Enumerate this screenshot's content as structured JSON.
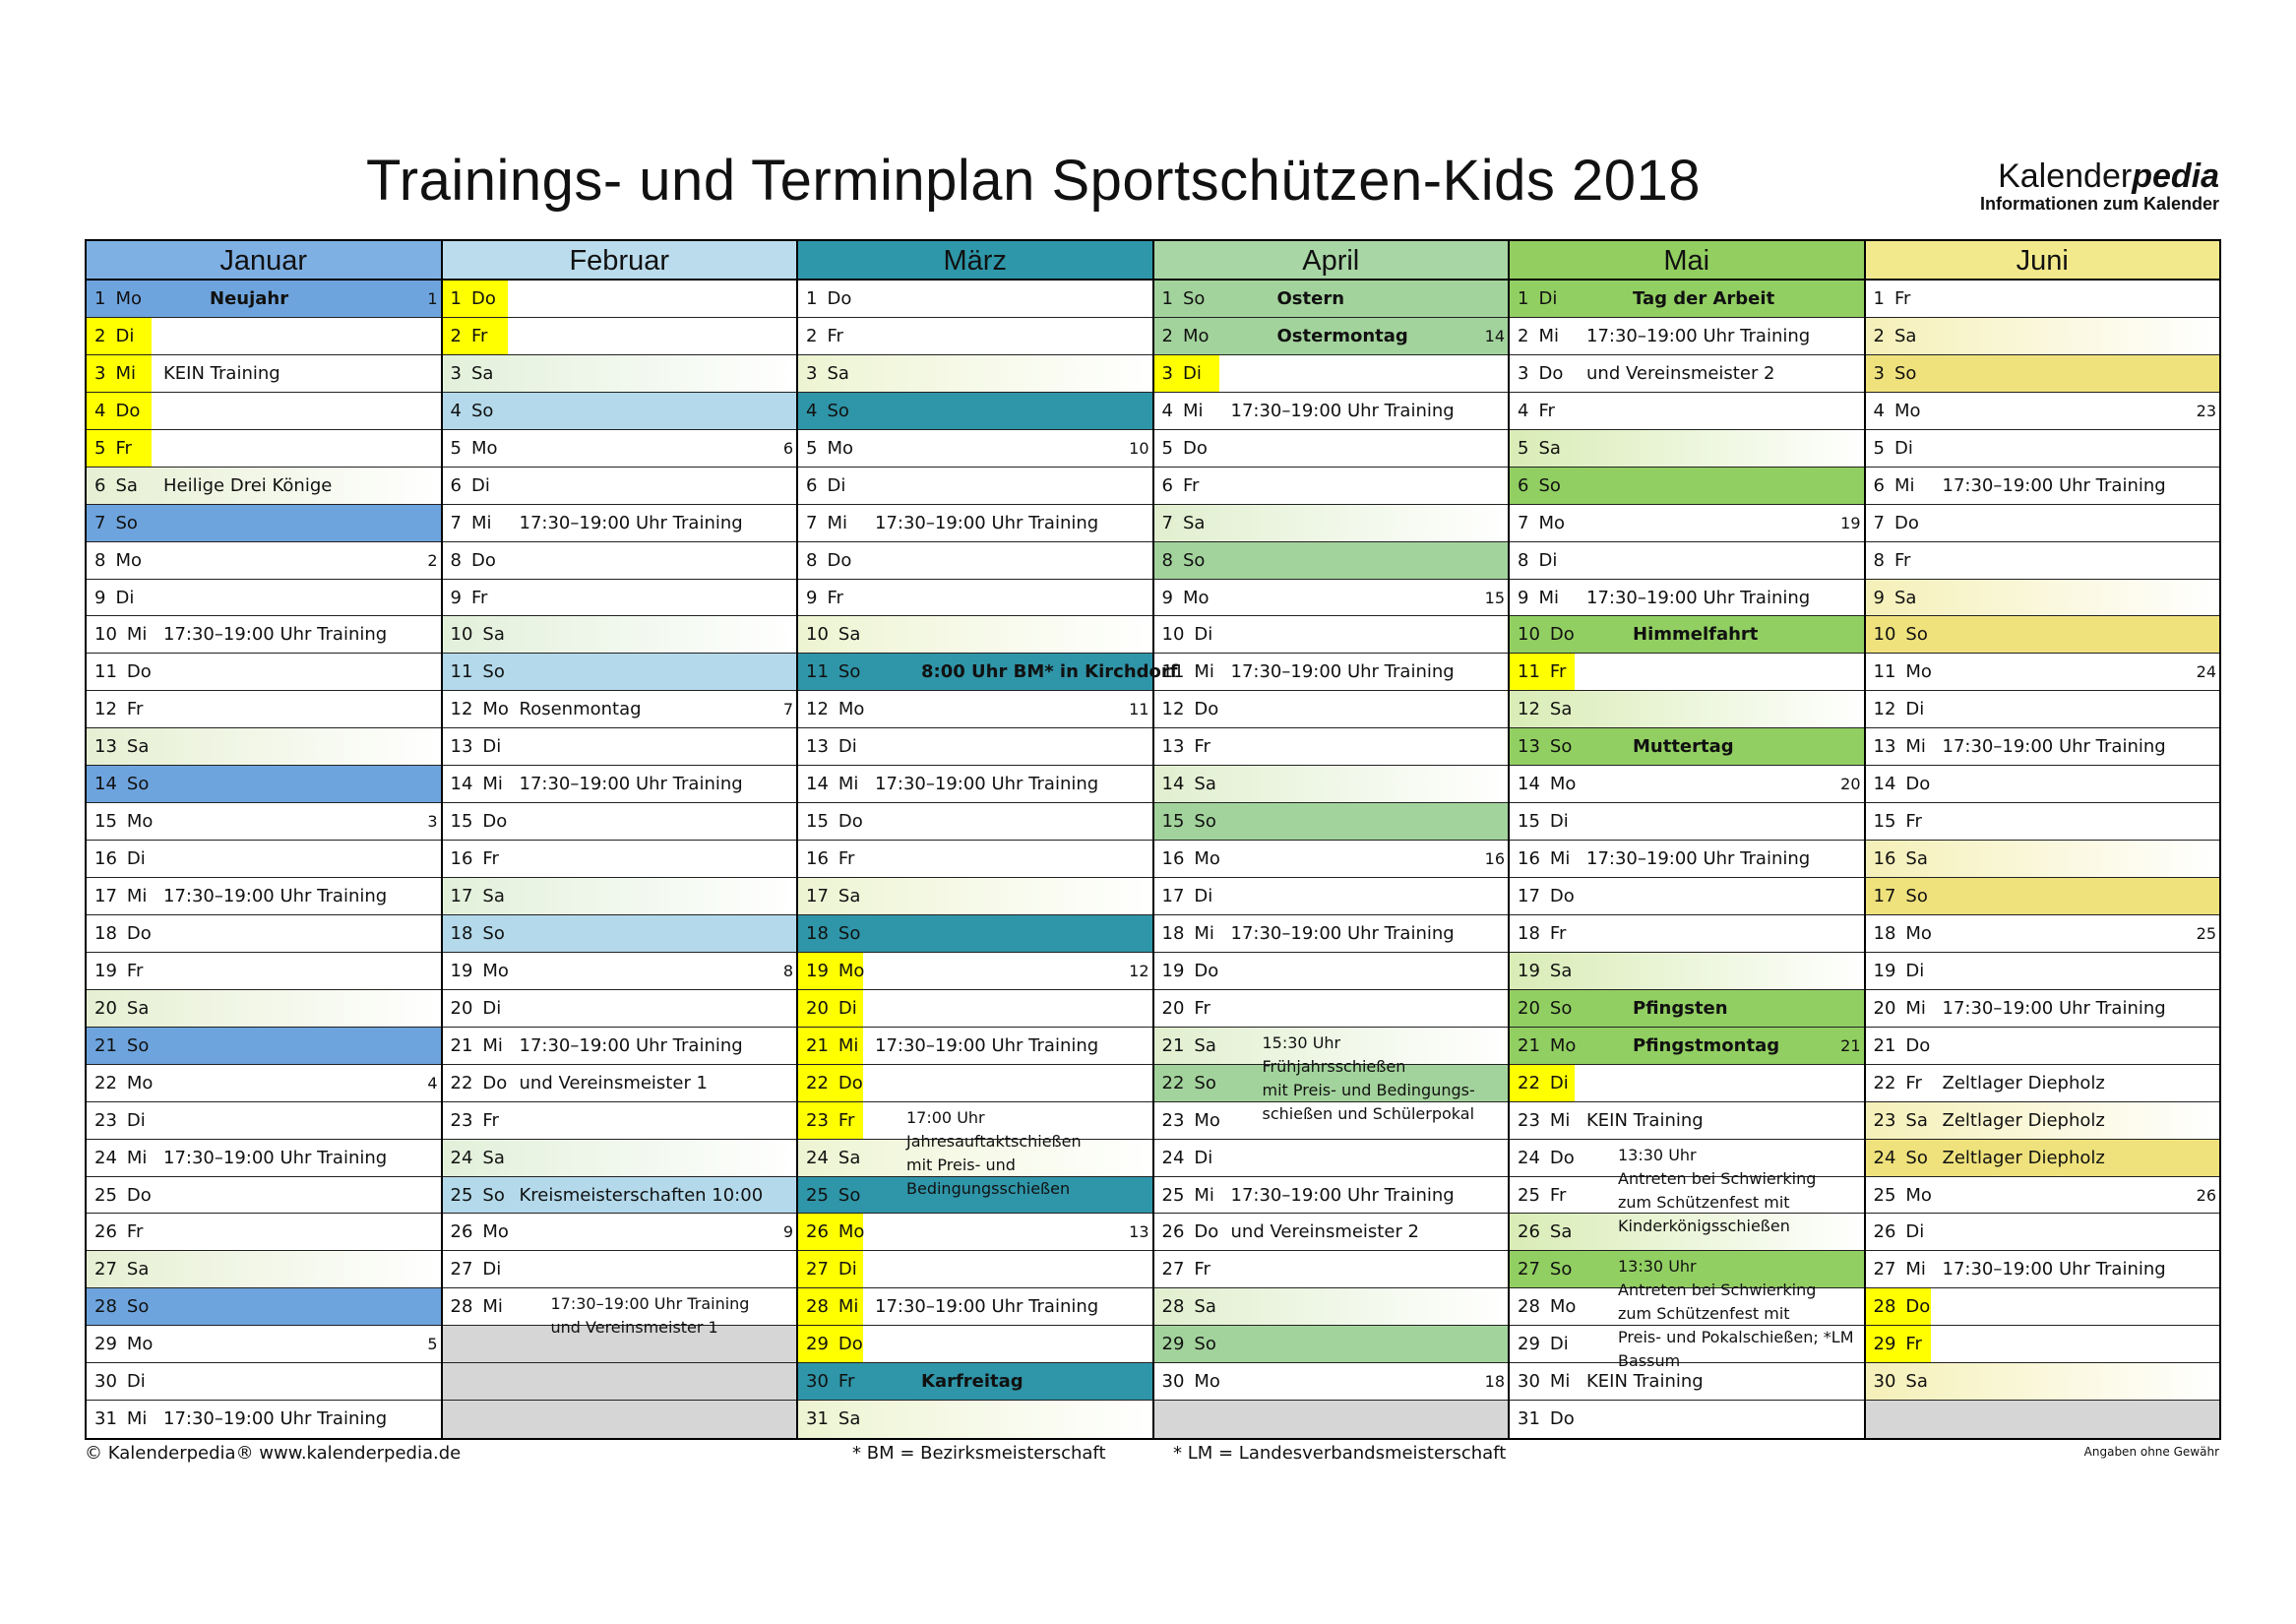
{
  "title": "Trainings- und Terminplan Sportschützen-Kids 2018",
  "brand": {
    "name_a": "Kalender",
    "name_b": "pedia",
    "subtitle": "Informationen zum Kalender"
  },
  "ferien_color": "#ffff00",
  "empty_color": "#d6d6d6",
  "months": [
    {
      "name": "Januar",
      "color": "#7fb0e3",
      "strong": "#6ea4dd",
      "light": "#e6efd2",
      "days": [
        {
          "d": 1,
          "wd": "Mo",
          "note": "Neujahr",
          "kw": 1,
          "h": true
        },
        {
          "d": 2,
          "wd": "Di",
          "f": true
        },
        {
          "d": 3,
          "wd": "Mi",
          "note": "KEIN Training",
          "f": true
        },
        {
          "d": 4,
          "wd": "Do",
          "f": true
        },
        {
          "d": 5,
          "wd": "Fr",
          "f": true
        },
        {
          "d": 6,
          "wd": "Sa",
          "note": "Heilige Drei Könige",
          "h": false
        },
        {
          "d": 7,
          "wd": "So"
        },
        {
          "d": 8,
          "wd": "Mo",
          "kw": 2
        },
        {
          "d": 9,
          "wd": "Di"
        },
        {
          "d": 10,
          "wd": "Mi",
          "note": "17:30–19:00 Uhr Training"
        },
        {
          "d": 11,
          "wd": "Do"
        },
        {
          "d": 12,
          "wd": "Fr"
        },
        {
          "d": 13,
          "wd": "Sa"
        },
        {
          "d": 14,
          "wd": "So"
        },
        {
          "d": 15,
          "wd": "Mo",
          "kw": 3
        },
        {
          "d": 16,
          "wd": "Di"
        },
        {
          "d": 17,
          "wd": "Mi",
          "note": "17:30–19:00 Uhr Training"
        },
        {
          "d": 18,
          "wd": "Do"
        },
        {
          "d": 19,
          "wd": "Fr"
        },
        {
          "d": 20,
          "wd": "Sa"
        },
        {
          "d": 21,
          "wd": "So"
        },
        {
          "d": 22,
          "wd": "Mo",
          "kw": 4
        },
        {
          "d": 23,
          "wd": "Di"
        },
        {
          "d": 24,
          "wd": "Mi",
          "note": "17:30–19:00 Uhr Training"
        },
        {
          "d": 25,
          "wd": "Do"
        },
        {
          "d": 26,
          "wd": "Fr"
        },
        {
          "d": 27,
          "wd": "Sa"
        },
        {
          "d": 28,
          "wd": "So"
        },
        {
          "d": 29,
          "wd": "Mo",
          "kw": 5
        },
        {
          "d": 30,
          "wd": "Di"
        },
        {
          "d": 31,
          "wd": "Mi",
          "note": "17:30–19:00 Uhr Training"
        }
      ]
    },
    {
      "name": "Februar",
      "color": "#bbdcec",
      "strong": "#b3d9ea",
      "light": "#e2f0da",
      "days": [
        {
          "d": 1,
          "wd": "Do",
          "f": true
        },
        {
          "d": 2,
          "wd": "Fr",
          "f": true
        },
        {
          "d": 3,
          "wd": "Sa"
        },
        {
          "d": 4,
          "wd": "So"
        },
        {
          "d": 5,
          "wd": "Mo",
          "kw": 6
        },
        {
          "d": 6,
          "wd": "Di"
        },
        {
          "d": 7,
          "wd": "Mi",
          "note": "17:30–19:00 Uhr Training"
        },
        {
          "d": 8,
          "wd": "Do"
        },
        {
          "d": 9,
          "wd": "Fr"
        },
        {
          "d": 10,
          "wd": "Sa"
        },
        {
          "d": 11,
          "wd": "So"
        },
        {
          "d": 12,
          "wd": "Mo",
          "note": "Rosenmontag",
          "kw": 7
        },
        {
          "d": 13,
          "wd": "Di"
        },
        {
          "d": 14,
          "wd": "Mi",
          "note": "17:30–19:00 Uhr Training"
        },
        {
          "d": 15,
          "wd": "Do"
        },
        {
          "d": 16,
          "wd": "Fr"
        },
        {
          "d": 17,
          "wd": "Sa"
        },
        {
          "d": 18,
          "wd": "So"
        },
        {
          "d": 19,
          "wd": "Mo",
          "kw": 8
        },
        {
          "d": 20,
          "wd": "Di"
        },
        {
          "d": 21,
          "wd": "Mi",
          "note": "17:30–19:00 Uhr Training"
        },
        {
          "d": 22,
          "wd": "Do",
          "note": "und Vereinsmeister 1"
        },
        {
          "d": 23,
          "wd": "Fr"
        },
        {
          "d": 24,
          "wd": "Sa"
        },
        {
          "d": 25,
          "wd": "So",
          "note": "Kreismeisterschaften 10:00"
        },
        {
          "d": 26,
          "wd": "Mo",
          "kw": 9
        },
        {
          "d": 27,
          "wd": "Di"
        },
        {
          "d": 28,
          "wd": "Mi",
          "note": [
            "17:30–19:00 Uhr Training",
            "und Vereinsmeister 1"
          ]
        }
      ]
    },
    {
      "name": "März",
      "color": "#2e97aa",
      "strong": "#2f95a8",
      "light": "#edf4d2",
      "days": [
        {
          "d": 1,
          "wd": "Do"
        },
        {
          "d": 2,
          "wd": "Fr"
        },
        {
          "d": 3,
          "wd": "Sa"
        },
        {
          "d": 4,
          "wd": "So"
        },
        {
          "d": 5,
          "wd": "Mo",
          "kw": 10
        },
        {
          "d": 6,
          "wd": "Di"
        },
        {
          "d": 7,
          "wd": "Mi",
          "note": "17:30–19:00 Uhr Training"
        },
        {
          "d": 8,
          "wd": "Do"
        },
        {
          "d": 9,
          "wd": "Fr"
        },
        {
          "d": 10,
          "wd": "Sa"
        },
        {
          "d": 11,
          "wd": "So",
          "note": "8:00 Uhr BM* in Kirchdorf",
          "h": true
        },
        {
          "d": 12,
          "wd": "Mo",
          "kw": 11
        },
        {
          "d": 13,
          "wd": "Di"
        },
        {
          "d": 14,
          "wd": "Mi",
          "note": "17:30–19:00 Uhr Training"
        },
        {
          "d": 15,
          "wd": "Do"
        },
        {
          "d": 16,
          "wd": "Fr"
        },
        {
          "d": 17,
          "wd": "Sa"
        },
        {
          "d": 18,
          "wd": "So"
        },
        {
          "d": 19,
          "wd": "Mo",
          "kw": 12,
          "f": true
        },
        {
          "d": 20,
          "wd": "Di",
          "f": true
        },
        {
          "d": 21,
          "wd": "Mi",
          "note": "17:30–19:00 Uhr Training",
          "f": true
        },
        {
          "d": 22,
          "wd": "Do",
          "f": true
        },
        {
          "d": 23,
          "wd": "Fr",
          "f": true,
          "note": [
            "17:00 Uhr",
            "Jahresauftaktschießen",
            "mit Preis- und",
            "Bedingungsschießen"
          ]
        },
        {
          "d": 24,
          "wd": "Sa"
        },
        {
          "d": 25,
          "wd": "So"
        },
        {
          "d": 26,
          "wd": "Mo",
          "kw": 13,
          "f": true
        },
        {
          "d": 27,
          "wd": "Di",
          "f": true
        },
        {
          "d": 28,
          "wd": "Mi",
          "note": "17:30–19:00 Uhr Training",
          "f": true
        },
        {
          "d": 29,
          "wd": "Do",
          "f": true
        },
        {
          "d": 30,
          "wd": "Fr",
          "note": "Karfreitag",
          "h": true
        },
        {
          "d": 31,
          "wd": "Sa"
        }
      ]
    },
    {
      "name": "April",
      "color": "#a9d6a5",
      "strong": "#a3d39c",
      "light": "#e1efcf",
      "days": [
        {
          "d": 1,
          "wd": "So",
          "note": "Ostern",
          "h": true
        },
        {
          "d": 2,
          "wd": "Mo",
          "note": "Ostermontag",
          "kw": 14,
          "h": true
        },
        {
          "d": 3,
          "wd": "Di",
          "f": true
        },
        {
          "d": 4,
          "wd": "Mi",
          "note": "17:30–19:00 Uhr Training"
        },
        {
          "d": 5,
          "wd": "Do"
        },
        {
          "d": 6,
          "wd": "Fr"
        },
        {
          "d": 7,
          "wd": "Sa"
        },
        {
          "d": 8,
          "wd": "So"
        },
        {
          "d": 9,
          "wd": "Mo",
          "kw": 15
        },
        {
          "d": 10,
          "wd": "Di"
        },
        {
          "d": 11,
          "wd": "Mi",
          "note": "17:30–19:00 Uhr Training"
        },
        {
          "d": 12,
          "wd": "Do"
        },
        {
          "d": 13,
          "wd": "Fr"
        },
        {
          "d": 14,
          "wd": "Sa"
        },
        {
          "d": 15,
          "wd": "So"
        },
        {
          "d": 16,
          "wd": "Mo",
          "kw": 16
        },
        {
          "d": 17,
          "wd": "Di"
        },
        {
          "d": 18,
          "wd": "Mi",
          "note": "17:30–19:00 Uhr Training"
        },
        {
          "d": 19,
          "wd": "Do"
        },
        {
          "d": 20,
          "wd": "Fr"
        },
        {
          "d": 21,
          "wd": "Sa",
          "note": [
            "15:30 Uhr",
            "Frühjahrsschießen",
            "mit Preis- und Bedingungs-",
            "schießen und Schülerpokal"
          ]
        },
        {
          "d": 22,
          "wd": "So"
        },
        {
          "d": 23,
          "wd": "Mo"
        },
        {
          "d": 24,
          "wd": "Di"
        },
        {
          "d": 25,
          "wd": "Mi",
          "note": "17:30–19:00 Uhr Training"
        },
        {
          "d": 26,
          "wd": "Do",
          "note": "und Vereinsmeister 2"
        },
        {
          "d": 27,
          "wd": "Fr"
        },
        {
          "d": 28,
          "wd": "Sa"
        },
        {
          "d": 29,
          "wd": "So"
        },
        {
          "d": 30,
          "wd": "Mo",
          "kw": 18
        }
      ]
    },
    {
      "name": "Mai",
      "color": "#93ce60",
      "strong": "#92cf62",
      "light": "#d9ecb6",
      "days": [
        {
          "d": 1,
          "wd": "Di",
          "note": "Tag der Arbeit",
          "h": true
        },
        {
          "d": 2,
          "wd": "Mi",
          "note": "17:30–19:00 Uhr Training"
        },
        {
          "d": 3,
          "wd": "Do",
          "note": "und Vereinsmeister 2"
        },
        {
          "d": 4,
          "wd": "Fr"
        },
        {
          "d": 5,
          "wd": "Sa"
        },
        {
          "d": 6,
          "wd": "So"
        },
        {
          "d": 7,
          "wd": "Mo",
          "kw": 19
        },
        {
          "d": 8,
          "wd": "Di"
        },
        {
          "d": 9,
          "wd": "Mi",
          "note": "17:30–19:00 Uhr Training"
        },
        {
          "d": 10,
          "wd": "Do",
          "note": "Himmelfahrt",
          "h": true
        },
        {
          "d": 11,
          "wd": "Fr",
          "f": true
        },
        {
          "d": 12,
          "wd": "Sa"
        },
        {
          "d": 13,
          "wd": "So",
          "note": "Muttertag",
          "h": true
        },
        {
          "d": 14,
          "wd": "Mo",
          "kw": 20
        },
        {
          "d": 15,
          "wd": "Di"
        },
        {
          "d": 16,
          "wd": "Mi",
          "note": "17:30–19:00 Uhr Training"
        },
        {
          "d": 17,
          "wd": "Do"
        },
        {
          "d": 18,
          "wd": "Fr"
        },
        {
          "d": 19,
          "wd": "Sa"
        },
        {
          "d": 20,
          "wd": "So",
          "note": "Pfingsten",
          "h": true
        },
        {
          "d": 21,
          "wd": "Mo",
          "note": "Pfingstmontag",
          "kw": 21,
          "h": true
        },
        {
          "d": 22,
          "wd": "Di",
          "f": true
        },
        {
          "d": 23,
          "wd": "Mi",
          "note": "KEIN Training"
        },
        {
          "d": 24,
          "wd": "Do",
          "note": [
            "13:30 Uhr",
            "Antreten bei Schwierking",
            "zum Schützenfest mit",
            "Kinderkönigsschießen"
          ]
        },
        {
          "d": 25,
          "wd": "Fr"
        },
        {
          "d": 26,
          "wd": "Sa"
        },
        {
          "d": 27,
          "wd": "So",
          "note": [
            "13:30 Uhr",
            "Antreten bei Schwierking",
            "zum Schützenfest mit",
            "Preis- und Pokalschießen; *LM",
            "Bassum"
          ]
        },
        {
          "d": 28,
          "wd": "Mo"
        },
        {
          "d": 29,
          "wd": "Di"
        },
        {
          "d": 30,
          "wd": "Mi",
          "note": "KEIN Training"
        },
        {
          "d": 31,
          "wd": "Do"
        }
      ]
    },
    {
      "name": "Juni",
      "color": "#f2e98c",
      "strong": "#efe27c",
      "light": "#f5f0b8",
      "days": [
        {
          "d": 1,
          "wd": "Fr"
        },
        {
          "d": 2,
          "wd": "Sa"
        },
        {
          "d": 3,
          "wd": "So"
        },
        {
          "d": 4,
          "wd": "Mo",
          "kw": 23
        },
        {
          "d": 5,
          "wd": "Di"
        },
        {
          "d": 6,
          "wd": "Mi",
          "note": "17:30–19:00 Uhr Training"
        },
        {
          "d": 7,
          "wd": "Do"
        },
        {
          "d": 8,
          "wd": "Fr"
        },
        {
          "d": 9,
          "wd": "Sa"
        },
        {
          "d": 10,
          "wd": "So"
        },
        {
          "d": 11,
          "wd": "Mo",
          "kw": 24
        },
        {
          "d": 12,
          "wd": "Di"
        },
        {
          "d": 13,
          "wd": "Mi",
          "note": "17:30–19:00 Uhr Training"
        },
        {
          "d": 14,
          "wd": "Do"
        },
        {
          "d": 15,
          "wd": "Fr"
        },
        {
          "d": 16,
          "wd": "Sa"
        },
        {
          "d": 17,
          "wd": "So"
        },
        {
          "d": 18,
          "wd": "Mo",
          "kw": 25
        },
        {
          "d": 19,
          "wd": "Di"
        },
        {
          "d": 20,
          "wd": "Mi",
          "note": "17:30–19:00 Uhr Training"
        },
        {
          "d": 21,
          "wd": "Do"
        },
        {
          "d": 22,
          "wd": "Fr",
          "note": "Zeltlager Diepholz"
        },
        {
          "d": 23,
          "wd": "Sa",
          "note": "Zeltlager Diepholz"
        },
        {
          "d": 24,
          "wd": "So",
          "note": "Zeltlager Diepholz"
        },
        {
          "d": 25,
          "wd": "Mo",
          "kw": 26
        },
        {
          "d": 26,
          "wd": "Di"
        },
        {
          "d": 27,
          "wd": "Mi",
          "note": "17:30–19:00 Uhr Training"
        },
        {
          "d": 28,
          "wd": "Do",
          "f": true
        },
        {
          "d": 29,
          "wd": "Fr",
          "f": true
        },
        {
          "d": 30,
          "wd": "Sa"
        }
      ]
    }
  ],
  "footer": {
    "copyright": "© Kalenderpedia®   www.kalenderpedia.de",
    "bm": "* BM = Bezirksmeisterschaft",
    "lm": "* LM = Landesverbandsmeisterschaft",
    "disclaimer": "Angaben ohne Gewähr"
  }
}
